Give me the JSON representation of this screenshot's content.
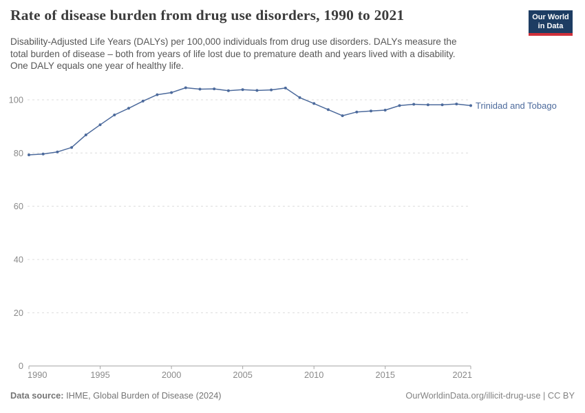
{
  "header": {
    "title": "Rate of disease burden from drug use disorders, 1990 to 2021",
    "subtitle_lines": [
      "Disability-Adjusted Life Years (DALYs) per 100,000 individuals from drug use disorders. DALYs measure the",
      "total burden of disease – both from years of life lost due to premature death and years lived with a disability.",
      "One DALY equals one year of healthy life."
    ],
    "logo": {
      "line1": "Our World",
      "line2": "in Data",
      "navy": "#1d3d63",
      "red": "#cf303a"
    }
  },
  "chart_data": {
    "type": "line",
    "title": "Rate of disease burden from drug use disorders, 1990 to 2021",
    "xlabel": "",
    "ylabel": "",
    "x": [
      1990,
      1991,
      1992,
      1993,
      1994,
      1995,
      1996,
      1997,
      1998,
      1999,
      2000,
      2001,
      2002,
      2003,
      2004,
      2005,
      2006,
      2007,
      2008,
      2009,
      2010,
      2011,
      2012,
      2013,
      2014,
      2015,
      2016,
      2017,
      2018,
      2019,
      2020,
      2021
    ],
    "series": [
      {
        "name": "Trinidad and Tobago",
        "values": [
          79.3,
          79.6,
          80.4,
          82.1,
          86.8,
          90.6,
          94.3,
          96.8,
          99.5,
          101.9,
          102.7,
          104.5,
          104.0,
          104.1,
          103.4,
          103.8,
          103.5,
          103.7,
          104.4,
          100.8,
          98.6,
          96.3,
          94.0,
          95.4,
          95.8,
          96.1,
          97.8,
          98.3,
          98.1,
          98.1,
          98.4,
          97.8
        ]
      }
    ],
    "ylim": [
      0,
      108
    ],
    "yticks": [
      0,
      20,
      40,
      60,
      80,
      100
    ],
    "xticks": [
      1990,
      1995,
      2000,
      2005,
      2010,
      2015,
      2021
    ],
    "grid": "horizontal-dashed",
    "legend": "line-end-label",
    "colors": {
      "line": "#4c6a9c"
    }
  },
  "footer": {
    "source_label": "Data source:",
    "source_text": "IHME, Global Burden of Disease (2024)",
    "credit": "OurWorldinData.org/illicit-drug-use | CC BY"
  }
}
